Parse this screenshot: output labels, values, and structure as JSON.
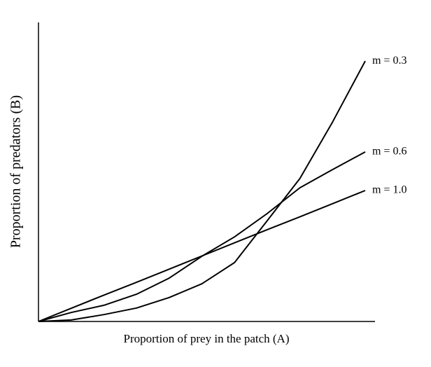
{
  "chart_data": {
    "type": "line",
    "x_label": "Proportion of prey in the patch (A)",
    "y_label": "Proportion of predators (B)",
    "x": [
      0,
      0.1,
      0.2,
      0.3,
      0.4,
      0.5,
      0.6,
      0.7,
      0.8,
      0.9,
      1.0
    ],
    "series": [
      {
        "name": "m = 0.3",
        "color": "#000000",
        "values": [
          0,
          0.005,
          0.023,
          0.045,
          0.08,
          0.126,
          0.197,
          0.337,
          0.478,
          0.667,
          0.871
        ]
      },
      {
        "name": "m = 0.6",
        "color": "#000000",
        "values": [
          0,
          0.03,
          0.054,
          0.091,
          0.145,
          0.218,
          0.283,
          0.361,
          0.447,
          0.508,
          0.567
        ]
      },
      {
        "name": "m = 1.0",
        "color": "#000000",
        "values": [
          0,
          0.044,
          0.088,
          0.131,
          0.175,
          0.219,
          0.263,
          0.307,
          0.35,
          0.394,
          0.438
        ]
      }
    ],
    "xlim": [
      0,
      1.03
    ],
    "ylim": [
      0,
      1
    ]
  }
}
